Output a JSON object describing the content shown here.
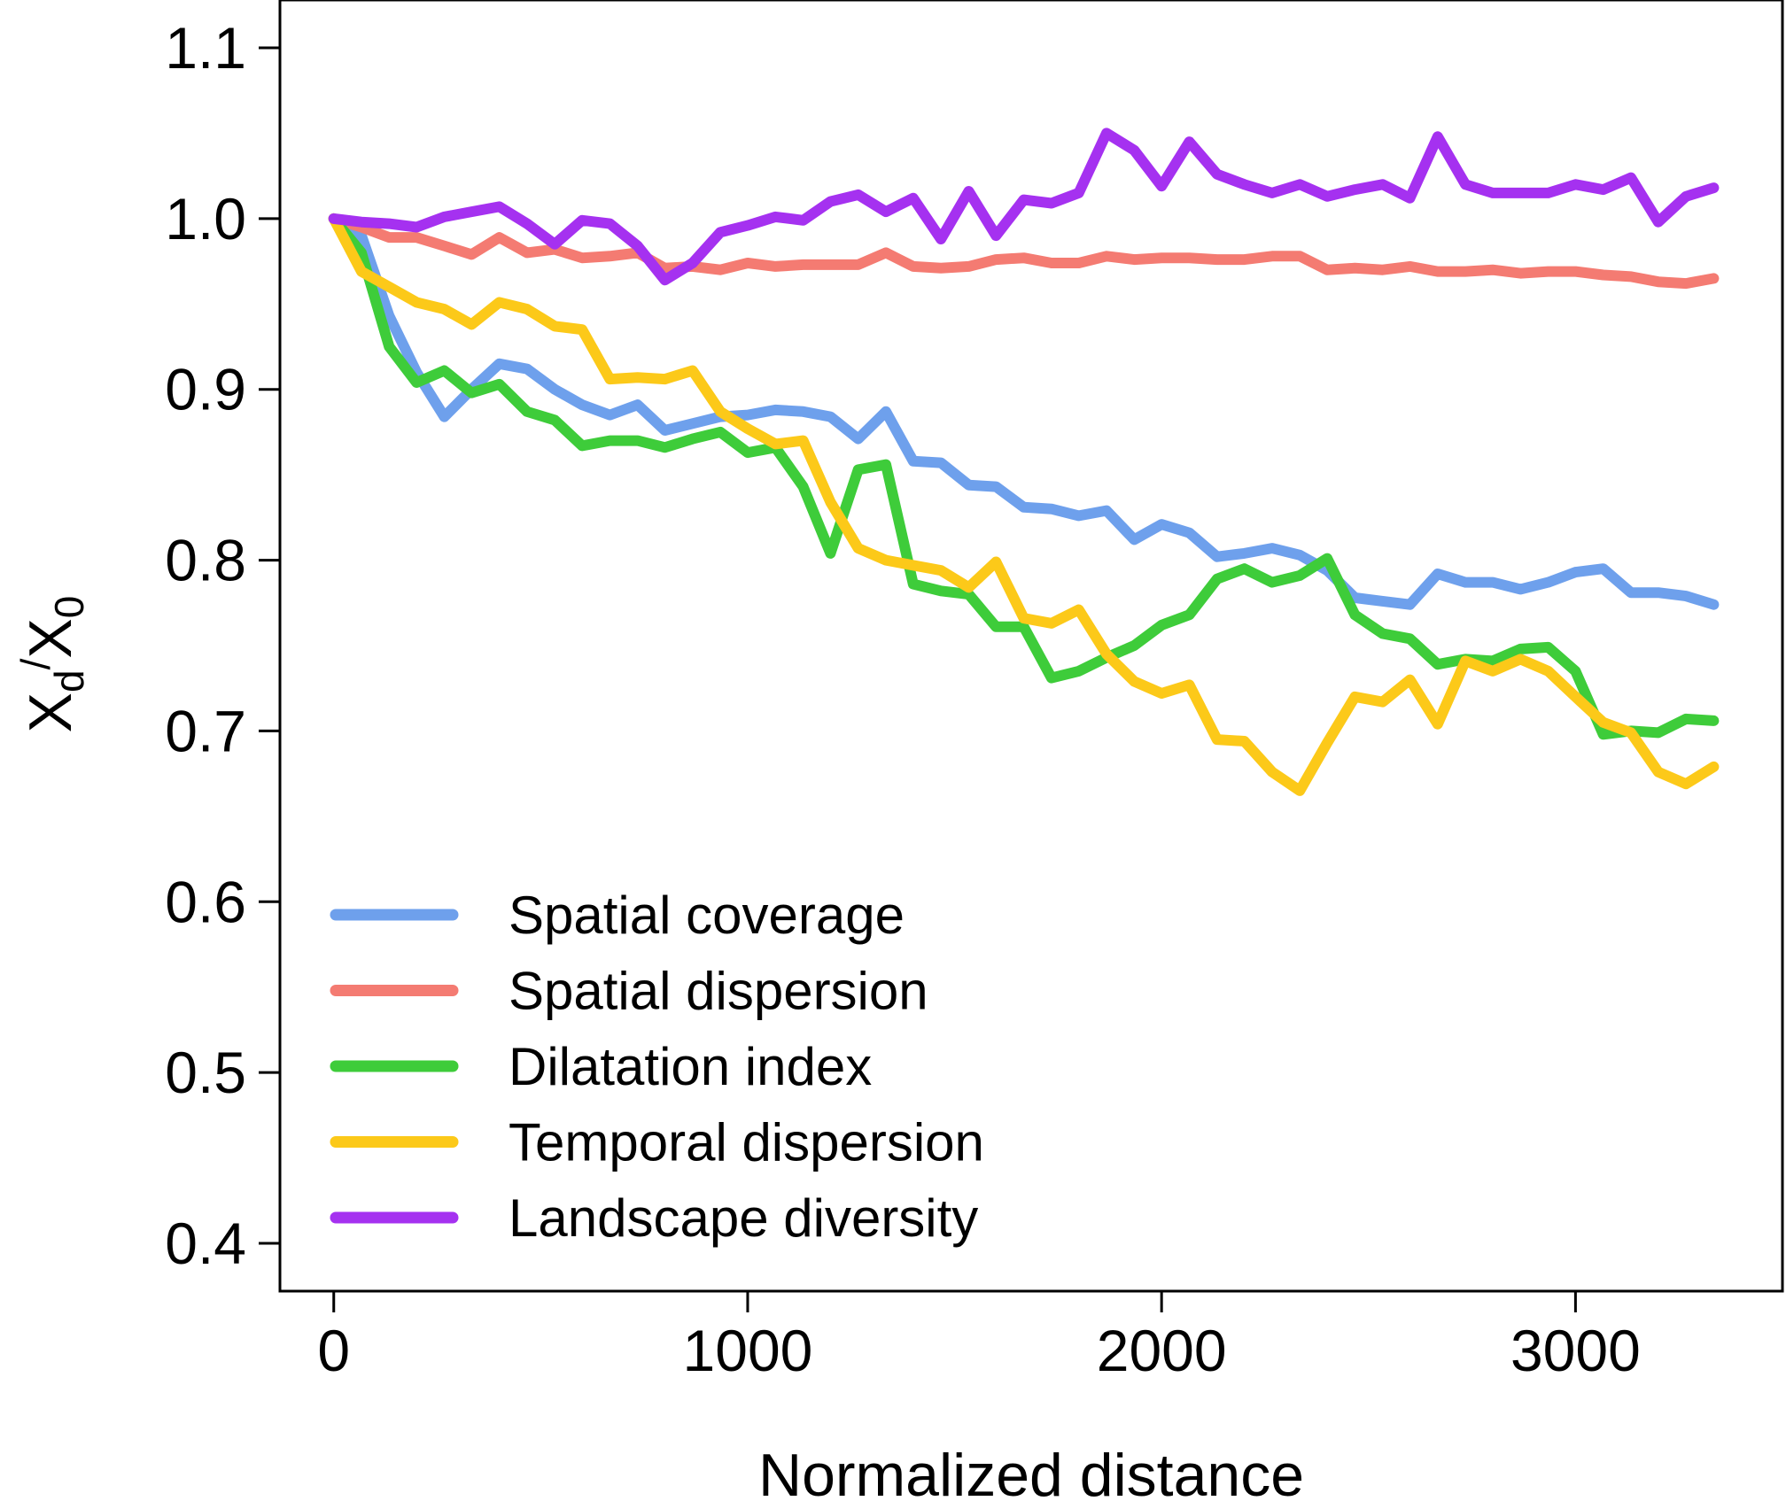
{
  "chart_data": {
    "type": "line",
    "title": "",
    "xlabel": "Normalized distance",
    "ylabel": {
      "base": "X",
      "num_sub": "d",
      "sep": "/",
      "den_base": "X",
      "den_sub": "0"
    },
    "xlim": [
      -130,
      3500
    ],
    "ylim": [
      0.372,
      1.128
    ],
    "x_ticks": [
      0,
      1000,
      2000,
      3000
    ],
    "x_tick_labels": [
      "0",
      "1000",
      "2000",
      "3000"
    ],
    "y_ticks": [
      0.4,
      0.5,
      0.6,
      0.7,
      0.8,
      0.9,
      1.0,
      1.1
    ],
    "y_tick_labels": [
      "0.4",
      "0.5",
      "0.6",
      "0.7",
      "0.8",
      "0.9",
      "1.0",
      "1.1"
    ],
    "legend_position": "bottom-left",
    "series": [
      {
        "name": "Spatial coverage",
        "color": "#6ea0ec",
        "x": [
          0,
          67,
          134,
          200,
          267,
          333,
          400,
          467,
          534,
          600,
          667,
          734,
          800,
          867,
          934,
          1000,
          1067,
          1134,
          1200,
          1267,
          1334,
          1400,
          1467,
          1534,
          1600,
          1667,
          1734,
          1800,
          1867,
          1934,
          2000,
          2067,
          2134,
          2200,
          2267,
          2334,
          2400,
          2467,
          2534,
          2600,
          2667,
          2734,
          2800,
          2867,
          2934,
          3000,
          3067,
          3134,
          3200,
          3267,
          3334
        ],
        "values": [
          1.0,
          0.99,
          0.943,
          0.91,
          0.884,
          0.9,
          0.915,
          0.912,
          0.9,
          0.891,
          0.885,
          0.891,
          0.876,
          0.88,
          0.884,
          0.885,
          0.888,
          0.887,
          0.884,
          0.871,
          0.887,
          0.858,
          0.857,
          0.844,
          0.843,
          0.831,
          0.83,
          0.826,
          0.829,
          0.812,
          0.821,
          0.816,
          0.802,
          0.804,
          0.807,
          0.803,
          0.794,
          0.778,
          0.776,
          0.774,
          0.792,
          0.787,
          0.787,
          0.783,
          0.787,
          0.793,
          0.795,
          0.781,
          0.781,
          0.779,
          0.774
        ]
      },
      {
        "name": "Spatial dispersion",
        "color": "#f47b72",
        "x": [
          0,
          67,
          134,
          200,
          267,
          333,
          400,
          467,
          534,
          600,
          667,
          734,
          800,
          867,
          934,
          1000,
          1067,
          1134,
          1200,
          1267,
          1334,
          1400,
          1467,
          1534,
          1600,
          1667,
          1734,
          1800,
          1867,
          1934,
          2000,
          2067,
          2134,
          2200,
          2267,
          2334,
          2400,
          2467,
          2534,
          2600,
          2667,
          2734,
          2800,
          2867,
          2934,
          3000,
          3067,
          3134,
          3200,
          3267,
          3334
        ],
        "values": [
          1.0,
          0.995,
          0.989,
          0.989,
          0.984,
          0.979,
          0.989,
          0.98,
          0.982,
          0.977,
          0.978,
          0.98,
          0.971,
          0.972,
          0.97,
          0.974,
          0.972,
          0.973,
          0.973,
          0.973,
          0.98,
          0.972,
          0.971,
          0.972,
          0.976,
          0.977,
          0.974,
          0.974,
          0.978,
          0.976,
          0.977,
          0.977,
          0.976,
          0.976,
          0.978,
          0.978,
          0.97,
          0.971,
          0.97,
          0.972,
          0.969,
          0.969,
          0.97,
          0.968,
          0.969,
          0.969,
          0.967,
          0.966,
          0.963,
          0.962,
          0.965
        ]
      },
      {
        "name": "Dilatation index",
        "color": "#3ecc3a",
        "x": [
          0,
          67,
          134,
          200,
          267,
          333,
          400,
          467,
          534,
          600,
          667,
          734,
          800,
          867,
          934,
          1000,
          1067,
          1134,
          1200,
          1267,
          1334,
          1400,
          1467,
          1534,
          1600,
          1667,
          1734,
          1800,
          1867,
          1934,
          2000,
          2067,
          2134,
          2200,
          2267,
          2334,
          2400,
          2467,
          2534,
          2600,
          2667,
          2734,
          2800,
          2867,
          2934,
          3000,
          3067,
          3134,
          3200,
          3267,
          3334
        ],
        "values": [
          1.0,
          0.98,
          0.925,
          0.904,
          0.911,
          0.898,
          0.903,
          0.887,
          0.882,
          0.867,
          0.87,
          0.87,
          0.866,
          0.871,
          0.875,
          0.863,
          0.866,
          0.843,
          0.804,
          0.853,
          0.856,
          0.786,
          0.782,
          0.78,
          0.761,
          0.761,
          0.731,
          0.735,
          0.743,
          0.75,
          0.762,
          0.768,
          0.789,
          0.795,
          0.787,
          0.791,
          0.801,
          0.768,
          0.757,
          0.754,
          0.739,
          0.742,
          0.741,
          0.748,
          0.749,
          0.735,
          0.698,
          0.7,
          0.699,
          0.707,
          0.706
        ]
      },
      {
        "name": "Temporal dispersion",
        "color": "#fcc919",
        "x": [
          0,
          67,
          134,
          200,
          267,
          333,
          400,
          467,
          534,
          600,
          667,
          734,
          800,
          867,
          934,
          1000,
          1067,
          1134,
          1200,
          1267,
          1334,
          1400,
          1467,
          1534,
          1600,
          1667,
          1734,
          1800,
          1867,
          1934,
          2000,
          2067,
          2134,
          2200,
          2267,
          2334,
          2400,
          2467,
          2534,
          2600,
          2667,
          2734,
          2800,
          2867,
          2934,
          3000,
          3067,
          3134,
          3200,
          3267,
          3334
        ],
        "values": [
          1.0,
          0.969,
          0.96,
          0.951,
          0.947,
          0.938,
          0.951,
          0.947,
          0.937,
          0.935,
          0.906,
          0.907,
          0.906,
          0.911,
          0.887,
          0.877,
          0.868,
          0.87,
          0.834,
          0.807,
          0.8,
          0.797,
          0.794,
          0.784,
          0.799,
          0.766,
          0.763,
          0.771,
          0.745,
          0.729,
          0.722,
          0.727,
          0.695,
          0.694,
          0.676,
          0.665,
          0.693,
          0.72,
          0.717,
          0.73,
          0.704,
          0.741,
          0.735,
          0.742,
          0.735,
          0.72,
          0.705,
          0.699,
          0.676,
          0.669,
          0.679
        ]
      },
      {
        "name": "Landscape diversity",
        "color": "#a531f0",
        "x": [
          0,
          67,
          134,
          200,
          267,
          333,
          400,
          467,
          534,
          600,
          667,
          734,
          800,
          867,
          934,
          1000,
          1067,
          1134,
          1200,
          1267,
          1334,
          1400,
          1467,
          1534,
          1600,
          1667,
          1734,
          1800,
          1867,
          1934,
          2000,
          2067,
          2134,
          2200,
          2267,
          2334,
          2400,
          2467,
          2534,
          2600,
          2667,
          2734,
          2800,
          2867,
          2934,
          3000,
          3067,
          3134,
          3200,
          3267,
          3334
        ],
        "values": [
          1.0,
          0.998,
          0.997,
          0.995,
          1.001,
          1.004,
          1.007,
          0.997,
          0.985,
          0.999,
          0.997,
          0.984,
          0.964,
          0.974,
          0.992,
          0.996,
          1.001,
          0.999,
          1.01,
          1.014,
          1.004,
          1.012,
          0.988,
          1.016,
          0.99,
          1.011,
          1.009,
          1.015,
          1.05,
          1.04,
          1.019,
          1.045,
          1.026,
          1.02,
          1.015,
          1.02,
          1.013,
          1.017,
          1.02,
          1.012,
          1.048,
          1.02,
          1.015,
          1.015,
          1.015,
          1.02,
          1.017,
          1.024,
          0.998,
          1.013,
          1.018
        ]
      }
    ]
  }
}
